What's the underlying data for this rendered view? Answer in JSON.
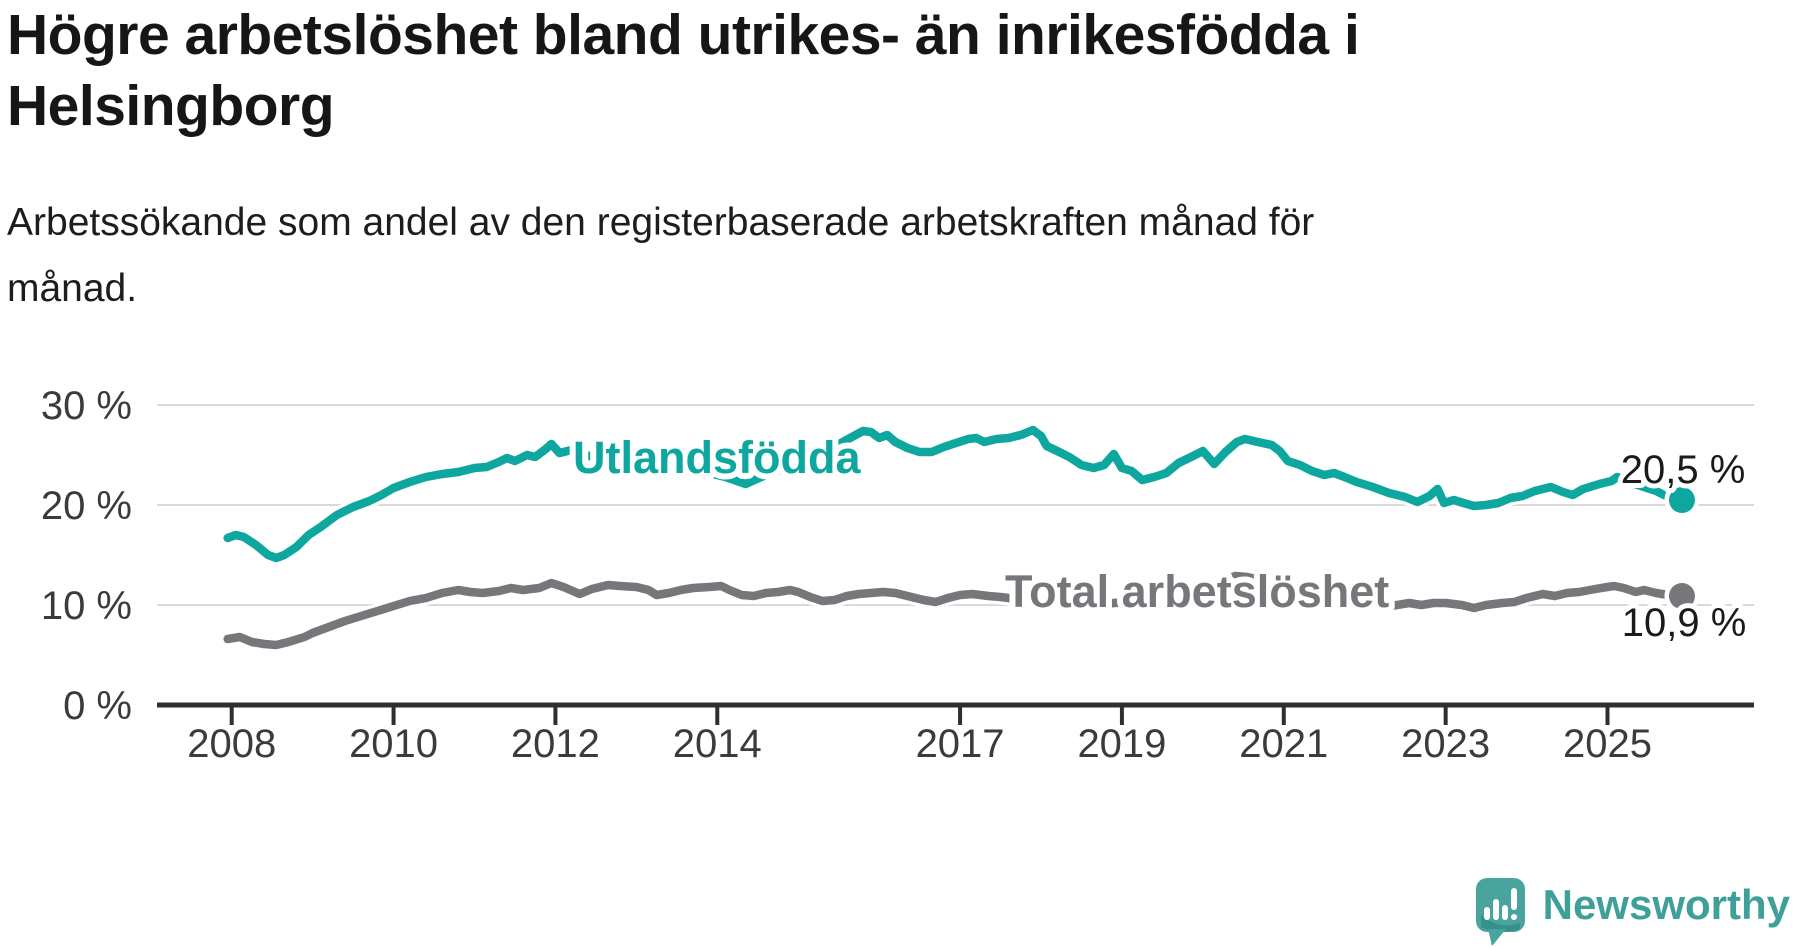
{
  "title": "Högre arbetslöshet bland utrikes- än inrikesfödda i Helsingborg",
  "title_lines": [
    "Högre arbetslöshet bland utrikes- än inrikesfödda i",
    "Helsingborg"
  ],
  "subtitle": "Arbetssökande som andel av den registerbaserade arbetskraften månad för månad.",
  "subtitle_lines": [
    "Arbetssökande som andel av den registerbaserade arbetskraften månad för",
    "månad."
  ],
  "logo": {
    "text": "Newsworthy"
  },
  "colors": {
    "foreign_born_line": "#0da79f",
    "total_line": "#79767b",
    "axis": "#2f2f2f",
    "gridline": "#d9d9d9",
    "tick_label": "#3b3b3b",
    "value_label": "#1a1a1a",
    "logo_teal": "#4aa49e",
    "logo_text": "#3f9f99",
    "background": "#ffffff"
  },
  "chart_data": {
    "type": "line",
    "title": "Högre arbetslöshet bland utrikes- än inrikesfödda i Helsingborg",
    "subtitle": "Arbetssökande som andel av den registerbaserade arbetskraften månad för månad.",
    "unit": "%",
    "grid": "horizontal",
    "x_range": [
      2007.9,
      2026.8
    ],
    "ylim": [
      0,
      30
    ],
    "y_ticks": [
      {
        "value": 30,
        "label": "30 %"
      },
      {
        "value": 20,
        "label": "20 %"
      },
      {
        "value": 10,
        "label": "10 %"
      },
      {
        "value": 0,
        "label": "0 %"
      }
    ],
    "x_ticks": [
      {
        "year": 2008,
        "label": "2008"
      },
      {
        "year": 2010,
        "label": "2010"
      },
      {
        "year": 2012,
        "label": "2012"
      },
      {
        "year": 2014,
        "label": "2014"
      },
      {
        "year": 2017,
        "label": "2017"
      },
      {
        "year": 2019,
        "label": "2019"
      },
      {
        "year": 2021,
        "label": "2021"
      },
      {
        "year": 2023,
        "label": "2023"
      },
      {
        "year": 2025,
        "label": "2025"
      }
    ],
    "series": [
      {
        "name": "Utlandsfödda",
        "color": "#0da79f",
        "end_value": 20.5,
        "end_label": "20,5 %",
        "points": [
          [
            2007.95,
            16.7
          ],
          [
            2008.05,
            17.0
          ],
          [
            2008.15,
            16.8
          ],
          [
            2008.3,
            16.0
          ],
          [
            2008.45,
            15.0
          ],
          [
            2008.55,
            14.7
          ],
          [
            2008.65,
            15.0
          ],
          [
            2008.8,
            15.8
          ],
          [
            2008.95,
            17.0
          ],
          [
            2009.1,
            17.8
          ],
          [
            2009.3,
            19.0
          ],
          [
            2009.5,
            19.8
          ],
          [
            2009.7,
            20.4
          ],
          [
            2009.85,
            21.0
          ],
          [
            2010.0,
            21.7
          ],
          [
            2010.2,
            22.3
          ],
          [
            2010.4,
            22.8
          ],
          [
            2010.6,
            23.1
          ],
          [
            2010.8,
            23.3
          ],
          [
            2011.0,
            23.7
          ],
          [
            2011.15,
            23.8
          ],
          [
            2011.3,
            24.3
          ],
          [
            2011.4,
            24.7
          ],
          [
            2011.5,
            24.4
          ],
          [
            2011.65,
            25.0
          ],
          [
            2011.75,
            24.8
          ],
          [
            2011.88,
            25.6
          ],
          [
            2011.95,
            26.1
          ],
          [
            2012.05,
            25.2
          ],
          [
            2012.2,
            25.5
          ],
          [
            2012.35,
            25.0
          ],
          [
            2012.5,
            24.8
          ],
          [
            2012.8,
            25.2
          ],
          [
            2013.0,
            25.0
          ],
          [
            2013.3,
            24.3
          ],
          [
            2013.6,
            23.8
          ],
          [
            2013.9,
            23.2
          ],
          [
            2014.1,
            22.8
          ],
          [
            2014.35,
            22.1
          ],
          [
            2014.6,
            23.0
          ],
          [
            2014.9,
            23.8
          ],
          [
            2015.1,
            24.5
          ],
          [
            2015.3,
            25.3
          ],
          [
            2015.55,
            26.3
          ],
          [
            2015.8,
            27.4
          ],
          [
            2015.9,
            27.3
          ],
          [
            2016.0,
            26.7
          ],
          [
            2016.1,
            27.0
          ],
          [
            2016.2,
            26.3
          ],
          [
            2016.35,
            25.7
          ],
          [
            2016.5,
            25.3
          ],
          [
            2016.65,
            25.3
          ],
          [
            2016.8,
            25.8
          ],
          [
            2016.95,
            26.2
          ],
          [
            2017.1,
            26.6
          ],
          [
            2017.2,
            26.7
          ],
          [
            2017.3,
            26.3
          ],
          [
            2017.45,
            26.6
          ],
          [
            2017.6,
            26.7
          ],
          [
            2017.75,
            27.0
          ],
          [
            2017.9,
            27.5
          ],
          [
            2018.0,
            26.9
          ],
          [
            2018.07,
            25.9
          ],
          [
            2018.2,
            25.4
          ],
          [
            2018.35,
            24.8
          ],
          [
            2018.5,
            24.0
          ],
          [
            2018.65,
            23.7
          ],
          [
            2018.78,
            24.0
          ],
          [
            2018.9,
            25.1
          ],
          [
            2019.0,
            23.7
          ],
          [
            2019.12,
            23.4
          ],
          [
            2019.25,
            22.5
          ],
          [
            2019.4,
            22.8
          ],
          [
            2019.55,
            23.2
          ],
          [
            2019.7,
            24.2
          ],
          [
            2019.88,
            24.9
          ],
          [
            2020.0,
            25.4
          ],
          [
            2020.14,
            24.1
          ],
          [
            2020.28,
            25.3
          ],
          [
            2020.42,
            26.3
          ],
          [
            2020.52,
            26.6
          ],
          [
            2020.68,
            26.3
          ],
          [
            2020.85,
            26.0
          ],
          [
            2020.95,
            25.4
          ],
          [
            2021.05,
            24.4
          ],
          [
            2021.2,
            24.0
          ],
          [
            2021.35,
            23.4
          ],
          [
            2021.5,
            23.0
          ],
          [
            2021.62,
            23.2
          ],
          [
            2021.75,
            22.8
          ],
          [
            2021.9,
            22.3
          ],
          [
            2022.1,
            21.8
          ],
          [
            2022.3,
            21.2
          ],
          [
            2022.5,
            20.8
          ],
          [
            2022.65,
            20.3
          ],
          [
            2022.8,
            20.9
          ],
          [
            2022.9,
            21.6
          ],
          [
            2022.98,
            20.2
          ],
          [
            2023.1,
            20.5
          ],
          [
            2023.22,
            20.2
          ],
          [
            2023.35,
            19.9
          ],
          [
            2023.5,
            20.0
          ],
          [
            2023.65,
            20.2
          ],
          [
            2023.8,
            20.7
          ],
          [
            2023.95,
            20.9
          ],
          [
            2024.1,
            21.4
          ],
          [
            2024.3,
            21.8
          ],
          [
            2024.45,
            21.3
          ],
          [
            2024.57,
            21.0
          ],
          [
            2024.7,
            21.6
          ],
          [
            2024.9,
            22.1
          ],
          [
            2025.05,
            22.4
          ],
          [
            2025.12,
            22.8
          ],
          [
            2025.3,
            22.2
          ],
          [
            2025.45,
            21.8
          ],
          [
            2025.6,
            21.4
          ],
          [
            2025.75,
            20.8
          ],
          [
            2025.92,
            20.5
          ]
        ]
      },
      {
        "name": "Total arbetslöshet",
        "color": "#79767b",
        "end_value": 10.9,
        "end_label": "10,9 %",
        "points": [
          [
            2007.95,
            6.6
          ],
          [
            2008.1,
            6.8
          ],
          [
            2008.25,
            6.3
          ],
          [
            2008.4,
            6.1
          ],
          [
            2008.55,
            6.0
          ],
          [
            2008.7,
            6.3
          ],
          [
            2008.9,
            6.8
          ],
          [
            2009.0,
            7.2
          ],
          [
            2009.2,
            7.8
          ],
          [
            2009.4,
            8.4
          ],
          [
            2009.6,
            8.9
          ],
          [
            2009.8,
            9.4
          ],
          [
            2010.0,
            9.9
          ],
          [
            2010.2,
            10.4
          ],
          [
            2010.4,
            10.7
          ],
          [
            2010.6,
            11.2
          ],
          [
            2010.8,
            11.5
          ],
          [
            2010.95,
            11.3
          ],
          [
            2011.1,
            11.2
          ],
          [
            2011.3,
            11.4
          ],
          [
            2011.45,
            11.7
          ],
          [
            2011.6,
            11.5
          ],
          [
            2011.8,
            11.7
          ],
          [
            2011.95,
            12.2
          ],
          [
            2012.1,
            11.8
          ],
          [
            2012.3,
            11.1
          ],
          [
            2012.45,
            11.6
          ],
          [
            2012.65,
            12.0
          ],
          [
            2012.8,
            11.9
          ],
          [
            2013.0,
            11.8
          ],
          [
            2013.15,
            11.5
          ],
          [
            2013.25,
            11.0
          ],
          [
            2013.4,
            11.2
          ],
          [
            2013.55,
            11.5
          ],
          [
            2013.7,
            11.7
          ],
          [
            2013.9,
            11.8
          ],
          [
            2014.05,
            11.9
          ],
          [
            2014.15,
            11.5
          ],
          [
            2014.3,
            11.0
          ],
          [
            2014.45,
            10.9
          ],
          [
            2014.6,
            11.2
          ],
          [
            2014.75,
            11.3
          ],
          [
            2014.9,
            11.5
          ],
          [
            2015.0,
            11.3
          ],
          [
            2015.15,
            10.8
          ],
          [
            2015.3,
            10.4
          ],
          [
            2015.45,
            10.5
          ],
          [
            2015.6,
            10.9
          ],
          [
            2015.75,
            11.1
          ],
          [
            2015.9,
            11.2
          ],
          [
            2016.05,
            11.3
          ],
          [
            2016.2,
            11.2
          ],
          [
            2016.4,
            10.8
          ],
          [
            2016.55,
            10.5
          ],
          [
            2016.7,
            10.3
          ],
          [
            2016.85,
            10.7
          ],
          [
            2017.0,
            11.0
          ],
          [
            2017.15,
            11.1
          ],
          [
            2017.35,
            10.9
          ],
          [
            2017.5,
            10.8
          ],
          [
            2017.7,
            10.6
          ],
          [
            2017.9,
            10.4
          ],
          [
            2018.1,
            10.2
          ],
          [
            2018.3,
            10.0
          ],
          [
            2018.5,
            9.9
          ],
          [
            2018.7,
            10.0
          ],
          [
            2018.9,
            10.2
          ],
          [
            2019.1,
            10.3
          ],
          [
            2019.3,
            10.2
          ],
          [
            2019.5,
            10.4
          ],
          [
            2019.7,
            10.7
          ],
          [
            2019.9,
            11.0
          ],
          [
            2020.1,
            11.6
          ],
          [
            2020.25,
            12.4
          ],
          [
            2020.4,
            12.9
          ],
          [
            2020.55,
            12.8
          ],
          [
            2020.7,
            12.5
          ],
          [
            2020.9,
            12.2
          ],
          [
            2021.1,
            11.8
          ],
          [
            2021.3,
            11.4
          ],
          [
            2021.5,
            11.0
          ],
          [
            2021.7,
            10.7
          ],
          [
            2021.9,
            10.4
          ],
          [
            2022.1,
            10.0
          ],
          [
            2022.25,
            9.8
          ],
          [
            2022.4,
            10.0
          ],
          [
            2022.55,
            10.2
          ],
          [
            2022.7,
            10.0
          ],
          [
            2022.85,
            10.2
          ],
          [
            2023.0,
            10.2
          ],
          [
            2023.2,
            10.0
          ],
          [
            2023.35,
            9.7
          ],
          [
            2023.5,
            10.0
          ],
          [
            2023.7,
            10.2
          ],
          [
            2023.85,
            10.3
          ],
          [
            2024.0,
            10.7
          ],
          [
            2024.2,
            11.1
          ],
          [
            2024.35,
            10.9
          ],
          [
            2024.5,
            11.2
          ],
          [
            2024.65,
            11.3
          ],
          [
            2024.85,
            11.6
          ],
          [
            2025.0,
            11.8
          ],
          [
            2025.08,
            11.9
          ],
          [
            2025.2,
            11.7
          ],
          [
            2025.35,
            11.3
          ],
          [
            2025.45,
            11.5
          ],
          [
            2025.6,
            11.2
          ],
          [
            2025.75,
            11.0
          ],
          [
            2025.92,
            10.9
          ]
        ]
      }
    ]
  }
}
